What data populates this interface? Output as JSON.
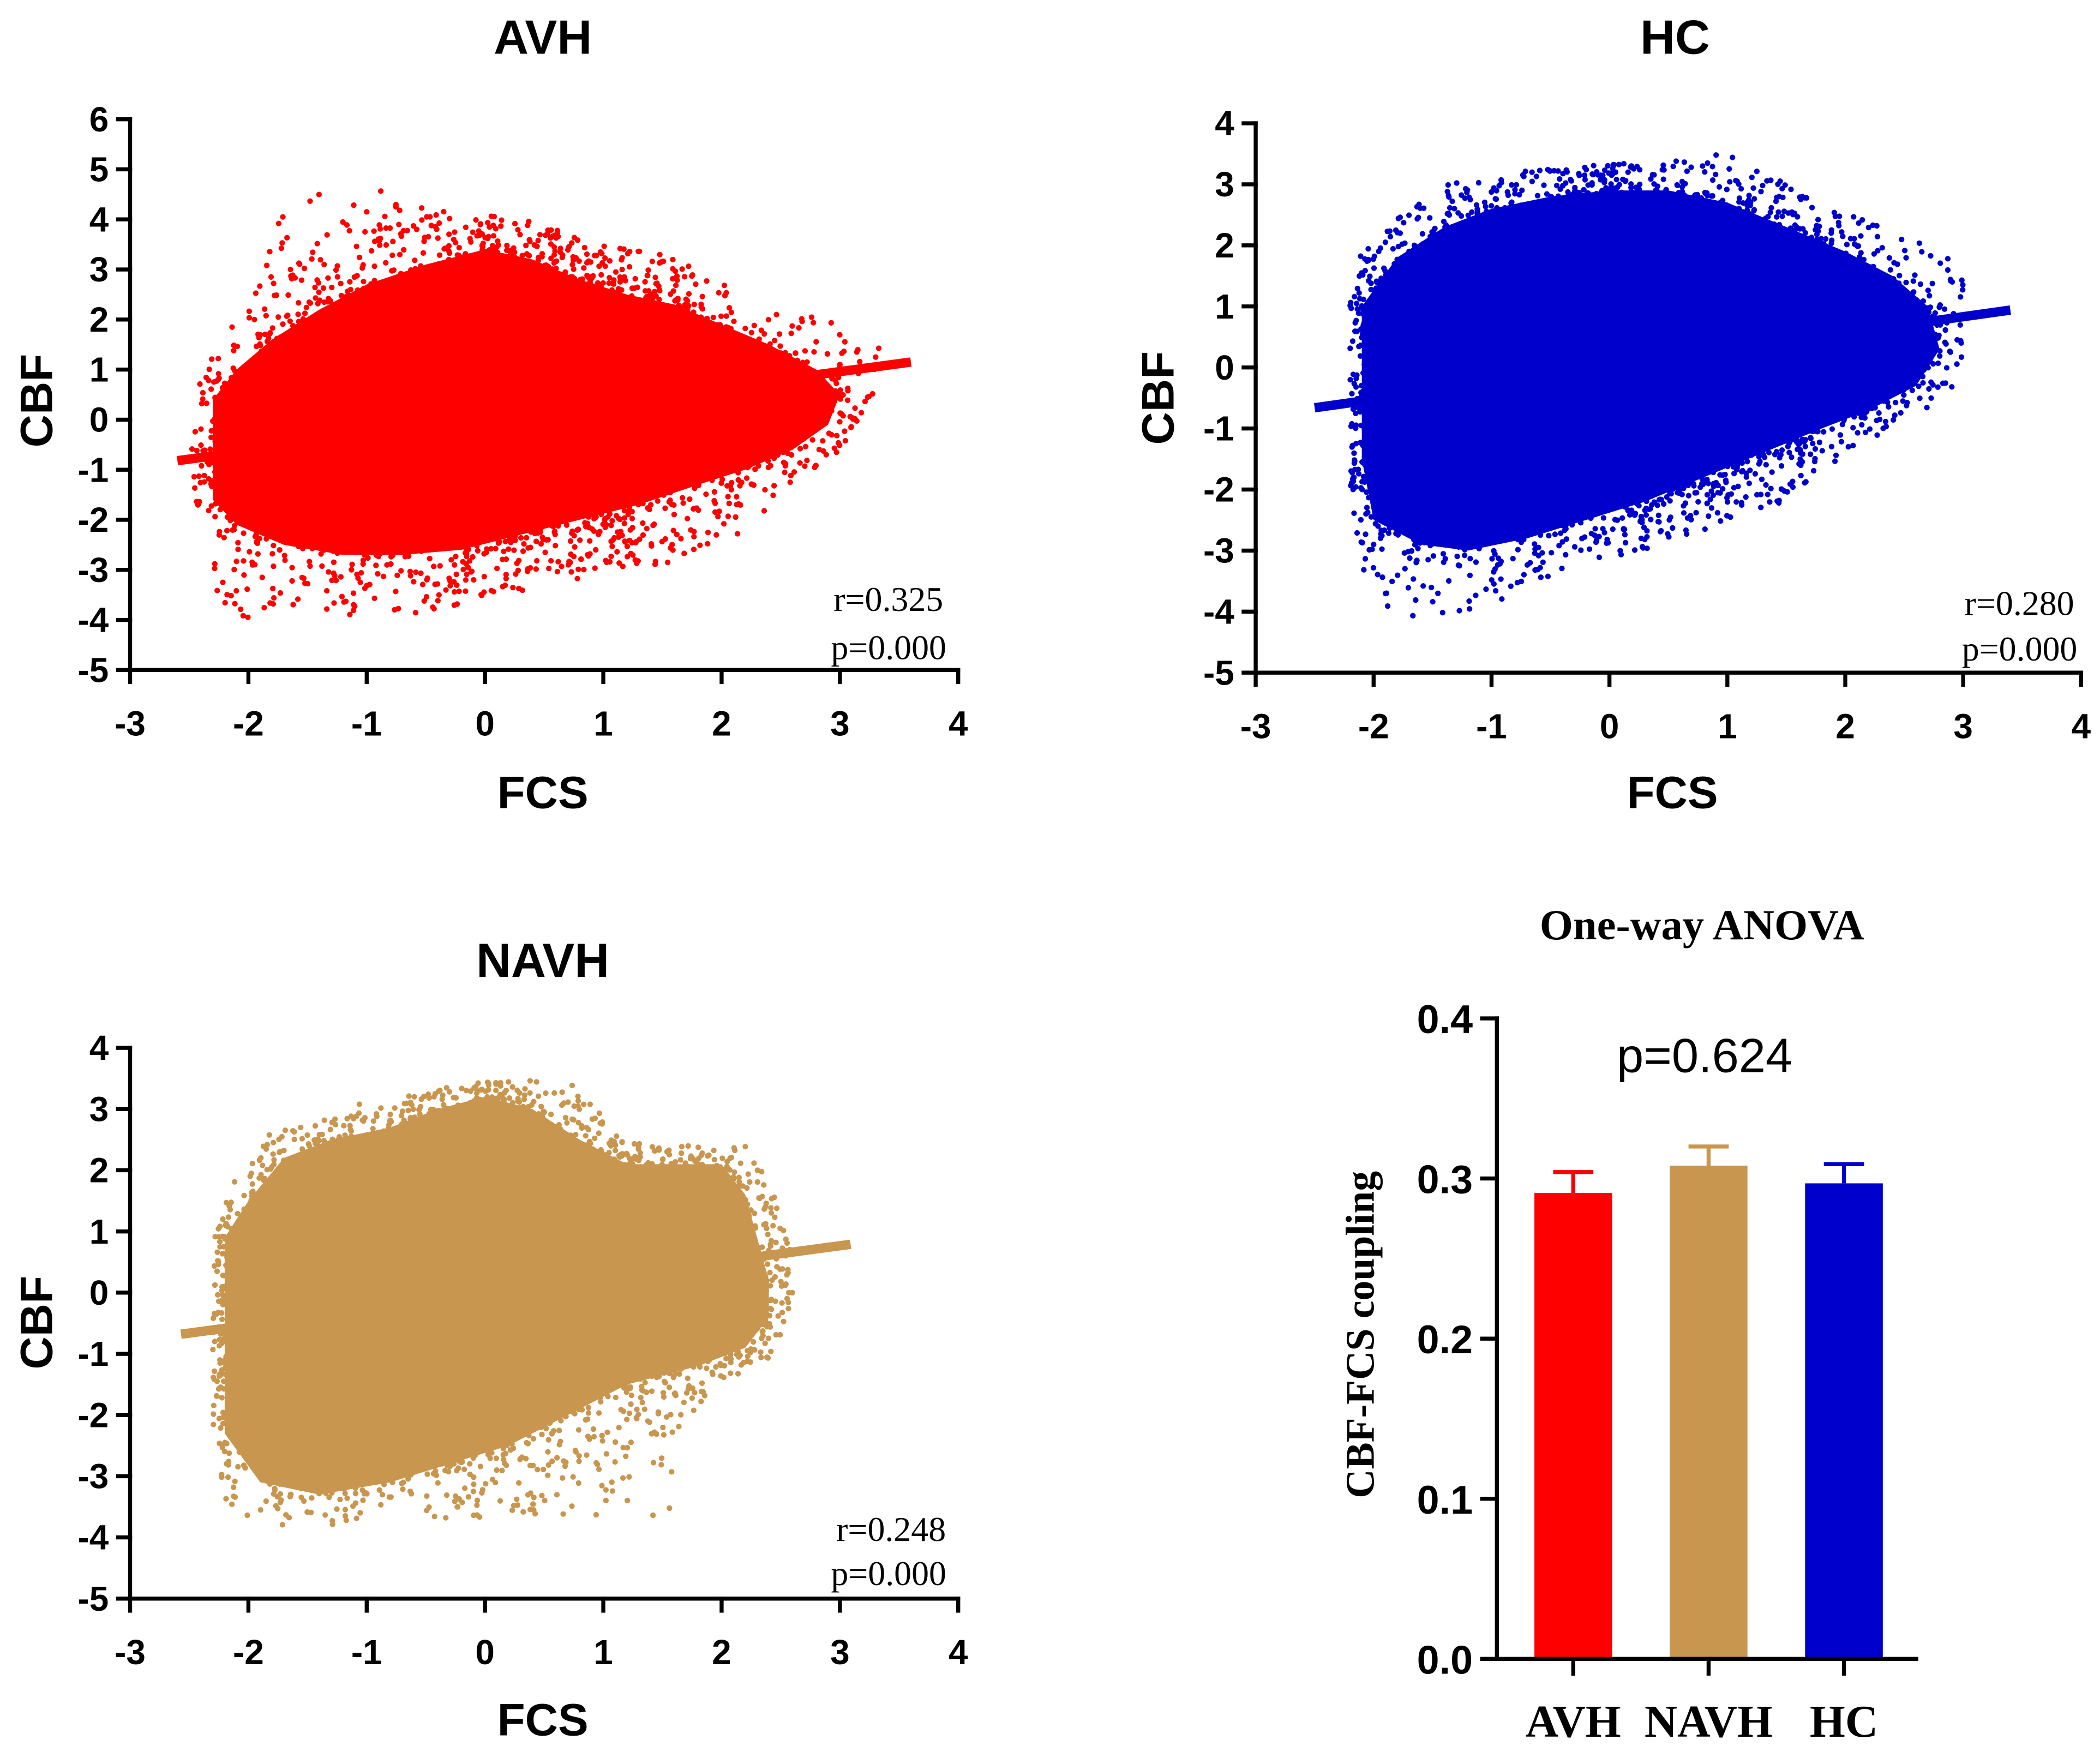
{
  "chart_data": [
    {
      "type": "scatter",
      "title": "AVH",
      "xlabel": "FCS",
      "ylabel": "CBF",
      "xlim": [
        -3,
        4
      ],
      "ylim": [
        -5,
        6
      ],
      "xticks": [
        -3,
        -2,
        -1,
        0,
        1,
        2,
        3,
        4
      ],
      "yticks": [
        6,
        5,
        4,
        3,
        2,
        1,
        0,
        -1,
        -2,
        -3,
        -4,
        -5
      ],
      "color": "#FF0000",
      "fit_line": {
        "x": [
          -2.6,
          3.6
        ],
        "y": [
          -0.82,
          1.15
        ]
      },
      "stats": {
        "r": "r=0.325",
        "p": "p=0.000"
      },
      "cloud": {
        "core": [
          [
            -2.3,
            0.4
          ],
          [
            -2.1,
            1.0
          ],
          [
            -1.8,
            1.6
          ],
          [
            -1.4,
            2.2
          ],
          [
            -1.0,
            2.7
          ],
          [
            -0.5,
            3.1
          ],
          [
            0,
            3.4
          ],
          [
            0.4,
            3.2
          ],
          [
            0.8,
            2.8
          ],
          [
            1.2,
            2.5
          ],
          [
            1.6,
            2.3
          ],
          [
            2.0,
            1.9
          ],
          [
            2.4,
            1.5
          ],
          [
            2.8,
            1.0
          ],
          [
            3.0,
            0.5
          ],
          [
            2.9,
            -0.1
          ],
          [
            2.6,
            -0.6
          ],
          [
            2.2,
            -1.0
          ],
          [
            1.8,
            -1.3
          ],
          [
            1.3,
            -1.7
          ],
          [
            0.8,
            -2.0
          ],
          [
            0.3,
            -2.3
          ],
          [
            -0.2,
            -2.6
          ],
          [
            -0.7,
            -2.7
          ],
          [
            -1.2,
            -2.7
          ],
          [
            -1.7,
            -2.5
          ],
          [
            -2.1,
            -2.1
          ],
          [
            -2.3,
            -1.6
          ]
        ],
        "spread": [
          [
            -2.5,
            -0.4
          ],
          [
            -2.4,
            0.9
          ],
          [
            -2.2,
            1.7
          ],
          [
            -1.9,
            2.7
          ],
          [
            -1.7,
            4.4
          ],
          [
            -1.3,
            4.6
          ],
          [
            -0.9,
            4.6
          ],
          [
            -0.6,
            4.4
          ],
          [
            -0.3,
            4.2
          ],
          [
            0.2,
            4.1
          ],
          [
            0.6,
            3.8
          ],
          [
            1.0,
            3.5
          ],
          [
            1.5,
            3.3
          ],
          [
            1.9,
            2.9
          ],
          [
            2.3,
            2.2
          ],
          [
            2.8,
            2.2
          ],
          [
            3.2,
            2.1
          ],
          [
            3.4,
            1.4
          ],
          [
            3.3,
            0.6
          ],
          [
            3.1,
            -0.5
          ],
          [
            2.8,
            -1.2
          ],
          [
            2.4,
            -1.9
          ],
          [
            2.0,
            -2.6
          ],
          [
            1.5,
            -2.9
          ],
          [
            1.0,
            -3.1
          ],
          [
            0.5,
            -3.3
          ],
          [
            0,
            -3.6
          ],
          [
            -0.5,
            -3.9
          ],
          [
            -0.9,
            -4.0
          ],
          [
            -2.2,
            -4.0
          ],
          [
            -2.35,
            -3.0
          ],
          [
            -2.45,
            -1.8
          ]
        ]
      }
    },
    {
      "type": "scatter",
      "title": "HC",
      "xlabel": "FCS",
      "ylabel": "CBF",
      "xlim": [
        -3,
        4
      ],
      "ylim": [
        -5,
        4
      ],
      "xticks": [
        -3,
        -2,
        -1,
        0,
        1,
        2,
        3,
        4
      ],
      "yticks": [
        4,
        3,
        2,
        1,
        0,
        -1,
        -2,
        -3,
        -4,
        -5
      ],
      "color": "#0000CD",
      "fit_line": {
        "x": [
          -2.5,
          3.4
        ],
        "y": [
          -0.66,
          0.94
        ]
      },
      "stats": {
        "r": "r=0.280",
        "p": "p=0.000"
      },
      "cloud": {
        "core": [
          [
            -2.1,
            1.0
          ],
          [
            -1.8,
            1.8
          ],
          [
            -1.4,
            2.3
          ],
          [
            -1.0,
            2.6
          ],
          [
            -0.5,
            2.8
          ],
          [
            0,
            2.9
          ],
          [
            0.5,
            2.9
          ],
          [
            1.0,
            2.7
          ],
          [
            1.5,
            2.3
          ],
          [
            2.0,
            1.9
          ],
          [
            2.4,
            1.5
          ],
          [
            2.7,
            1.0
          ],
          [
            2.8,
            0.3
          ],
          [
            2.6,
            -0.3
          ],
          [
            2.2,
            -0.7
          ],
          [
            1.8,
            -1.0
          ],
          [
            1.3,
            -1.4
          ],
          [
            0.8,
            -1.8
          ],
          [
            0.3,
            -2.2
          ],
          [
            -0.2,
            -2.5
          ],
          [
            -0.7,
            -2.8
          ],
          [
            -1.2,
            -3.0
          ],
          [
            -1.6,
            -2.9
          ],
          [
            -2.0,
            -2.5
          ],
          [
            -2.1,
            -1.5
          ]
        ],
        "spread": [
          [
            -2.2,
            -2.3
          ],
          [
            -2.2,
            1.6
          ],
          [
            -1.9,
            2.4
          ],
          [
            -1.4,
            3.0
          ],
          [
            -0.8,
            3.2
          ],
          [
            -0.2,
            3.3
          ],
          [
            0.5,
            3.4
          ],
          [
            1.0,
            3.5
          ],
          [
            1.4,
            3.1
          ],
          [
            1.8,
            2.7
          ],
          [
            2.3,
            2.3
          ],
          [
            2.8,
            2.0
          ],
          [
            3.0,
            1.4
          ],
          [
            3.0,
            0.2
          ],
          [
            2.9,
            -0.5
          ],
          [
            2.5,
            -0.9
          ],
          [
            2.0,
            -1.4
          ],
          [
            1.5,
            -2.2
          ],
          [
            0.9,
            -2.6
          ],
          [
            0.3,
            -3.0
          ],
          [
            -0.4,
            -3.3
          ],
          [
            -0.9,
            -3.8
          ],
          [
            -1.4,
            -4.1
          ],
          [
            -1.9,
            -4.1
          ],
          [
            -2.1,
            -3.3
          ]
        ]
      }
    },
    {
      "type": "scatter",
      "title": "NAVH",
      "xlabel": "FCS",
      "ylabel": "CBF",
      "xlim": [
        -3,
        4
      ],
      "ylim": [
        -5,
        4
      ],
      "xticks": [
        -3,
        -2,
        -1,
        0,
        1,
        2,
        3,
        4
      ],
      "yticks": [
        4,
        3,
        2,
        1,
        0,
        -1,
        -2,
        -3,
        -4,
        -5
      ],
      "color": "#C8964E",
      "fit_line": {
        "x": [
          -2.57,
          3.09
        ],
        "y": [
          -0.68,
          0.79
        ]
      },
      "stats": {
        "r": "r=0.248",
        "p": "p=0.000"
      },
      "cloud": {
        "core": [
          [
            -2.2,
            0.9
          ],
          [
            -2.0,
            1.5
          ],
          [
            -1.7,
            2.2
          ],
          [
            -1.3,
            2.5
          ],
          [
            -0.8,
            2.7
          ],
          [
            -0.4,
            3.0
          ],
          [
            0,
            3.2
          ],
          [
            0.4,
            3.0
          ],
          [
            0.8,
            2.5
          ],
          [
            1.2,
            2.1
          ],
          [
            1.6,
            2.1
          ],
          [
            2.0,
            2.1
          ],
          [
            2.2,
            1.6
          ],
          [
            2.3,
            0.9
          ],
          [
            2.4,
            0.2
          ],
          [
            2.4,
            -0.4
          ],
          [
            2.2,
            -0.9
          ],
          [
            1.8,
            -1.2
          ],
          [
            1.2,
            -1.5
          ],
          [
            0.7,
            -2.0
          ],
          [
            0.2,
            -2.5
          ],
          [
            -0.3,
            -2.8
          ],
          [
            -0.8,
            -3.1
          ],
          [
            -1.4,
            -3.3
          ],
          [
            -1.9,
            -3.1
          ],
          [
            -2.2,
            -2.3
          ]
        ],
        "spread": [
          [
            -2.3,
            -2.1
          ],
          [
            -2.3,
            1.0
          ],
          [
            -2.1,
            1.9
          ],
          [
            -1.8,
            2.7
          ],
          [
            -1.3,
            3.0
          ],
          [
            -0.7,
            3.2
          ],
          [
            -0.2,
            3.4
          ],
          [
            0.3,
            3.5
          ],
          [
            0.8,
            3.4
          ],
          [
            1.1,
            2.6
          ],
          [
            1.5,
            2.4
          ],
          [
            2.2,
            2.4
          ],
          [
            2.4,
            1.8
          ],
          [
            2.6,
            0.8
          ],
          [
            2.6,
            -0.3
          ],
          [
            2.4,
            -1.1
          ],
          [
            1.9,
            -1.6
          ],
          [
            1.6,
            -2.6
          ],
          [
            1.6,
            -3.6
          ],
          [
            1.2,
            -3.8
          ],
          [
            0.6,
            -3.6
          ],
          [
            0,
            -3.7
          ],
          [
            -0.6,
            -3.7
          ],
          [
            -1.2,
            -3.8
          ],
          [
            -1.9,
            -3.8
          ],
          [
            -2.2,
            -3.5
          ]
        ]
      }
    },
    {
      "type": "bar",
      "title": "One-way ANOVA",
      "ylabel": "CBF-FCS coupling",
      "categories": [
        "AVH",
        "NAVH",
        "HC"
      ],
      "values": [
        0.291,
        0.308,
        0.297
      ],
      "errors": [
        0.013,
        0.012,
        0.012
      ],
      "colors": [
        "#FF0000",
        "#C8964E",
        "#0000CD"
      ],
      "ylim": [
        0,
        0.4
      ],
      "yticks": [
        "0.0",
        "0.1",
        "0.2",
        "0.3",
        "0.4"
      ],
      "annotation": "p=0.624"
    }
  ]
}
